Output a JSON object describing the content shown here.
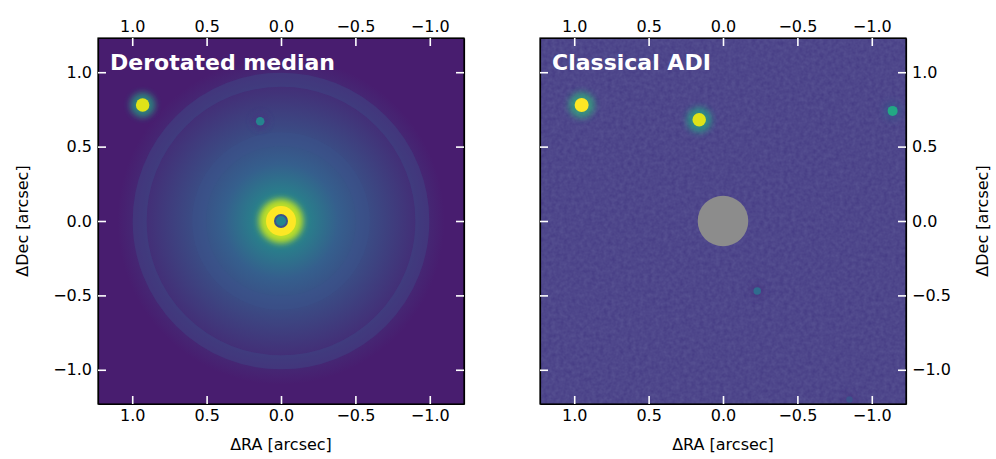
{
  "chart_data": [
    {
      "type": "image",
      "title": "Derotated median",
      "x_label": "ΔRA [arcsec]",
      "y_label": "ΔDec [arcsec]",
      "xlim": [
        1.23,
        -1.23
      ],
      "ylim": [
        -1.23,
        1.23
      ],
      "xticks": [
        {
          "value": 1.0,
          "label": "1.0"
        },
        {
          "value": 0.5,
          "label": "0.5"
        },
        {
          "value": 0.0,
          "label": "0.0"
        },
        {
          "value": -0.5,
          "label": "−0.5"
        },
        {
          "value": -1.0,
          "label": "−1.0"
        }
      ],
      "yticks": [
        {
          "value": -1.0,
          "label": "−1.0"
        },
        {
          "value": -0.5,
          "label": "−0.5"
        },
        {
          "value": 0.0,
          "label": "0.0"
        },
        {
          "value": 0.5,
          "label": "0.5"
        },
        {
          "value": 1.0,
          "label": "1.0"
        }
      ],
      "x": [
        0.0,
        0.93,
        0.14
      ],
      "values": [
        0.0,
        0.78,
        0.67
      ],
      "intensity": [
        1.0,
        0.95,
        0.45
      ]
    },
    {
      "type": "image",
      "title": "Classical ADI",
      "x_label": "ΔRA [arcsec]",
      "y_label": "ΔDec [arcsec]",
      "xlim": [
        1.23,
        -1.23
      ],
      "ylim": [
        -1.23,
        1.23
      ],
      "xticks": [
        {
          "value": 1.0,
          "label": "1.0"
        },
        {
          "value": 0.5,
          "label": "0.5"
        },
        {
          "value": 0.0,
          "label": "0.0"
        },
        {
          "value": -0.5,
          "label": "−0.5"
        },
        {
          "value": -1.0,
          "label": "−1.0"
        }
      ],
      "yticks": [
        {
          "value": -1.0,
          "label": "−1.0"
        },
        {
          "value": -0.5,
          "label": "−0.5"
        },
        {
          "value": 0.0,
          "label": "0.0"
        },
        {
          "value": 0.5,
          "label": "0.5"
        },
        {
          "value": 1.0,
          "label": "1.0"
        }
      ],
      "x": [
        0.95,
        0.16,
        -1.14,
        -0.23,
        -0.85
      ],
      "values": [
        0.78,
        0.68,
        0.74,
        -0.47,
        -1.2
      ],
      "intensity": [
        1.0,
        0.95,
        0.6,
        0.35,
        0.25
      ],
      "mask_radius": 0.17
    }
  ]
}
